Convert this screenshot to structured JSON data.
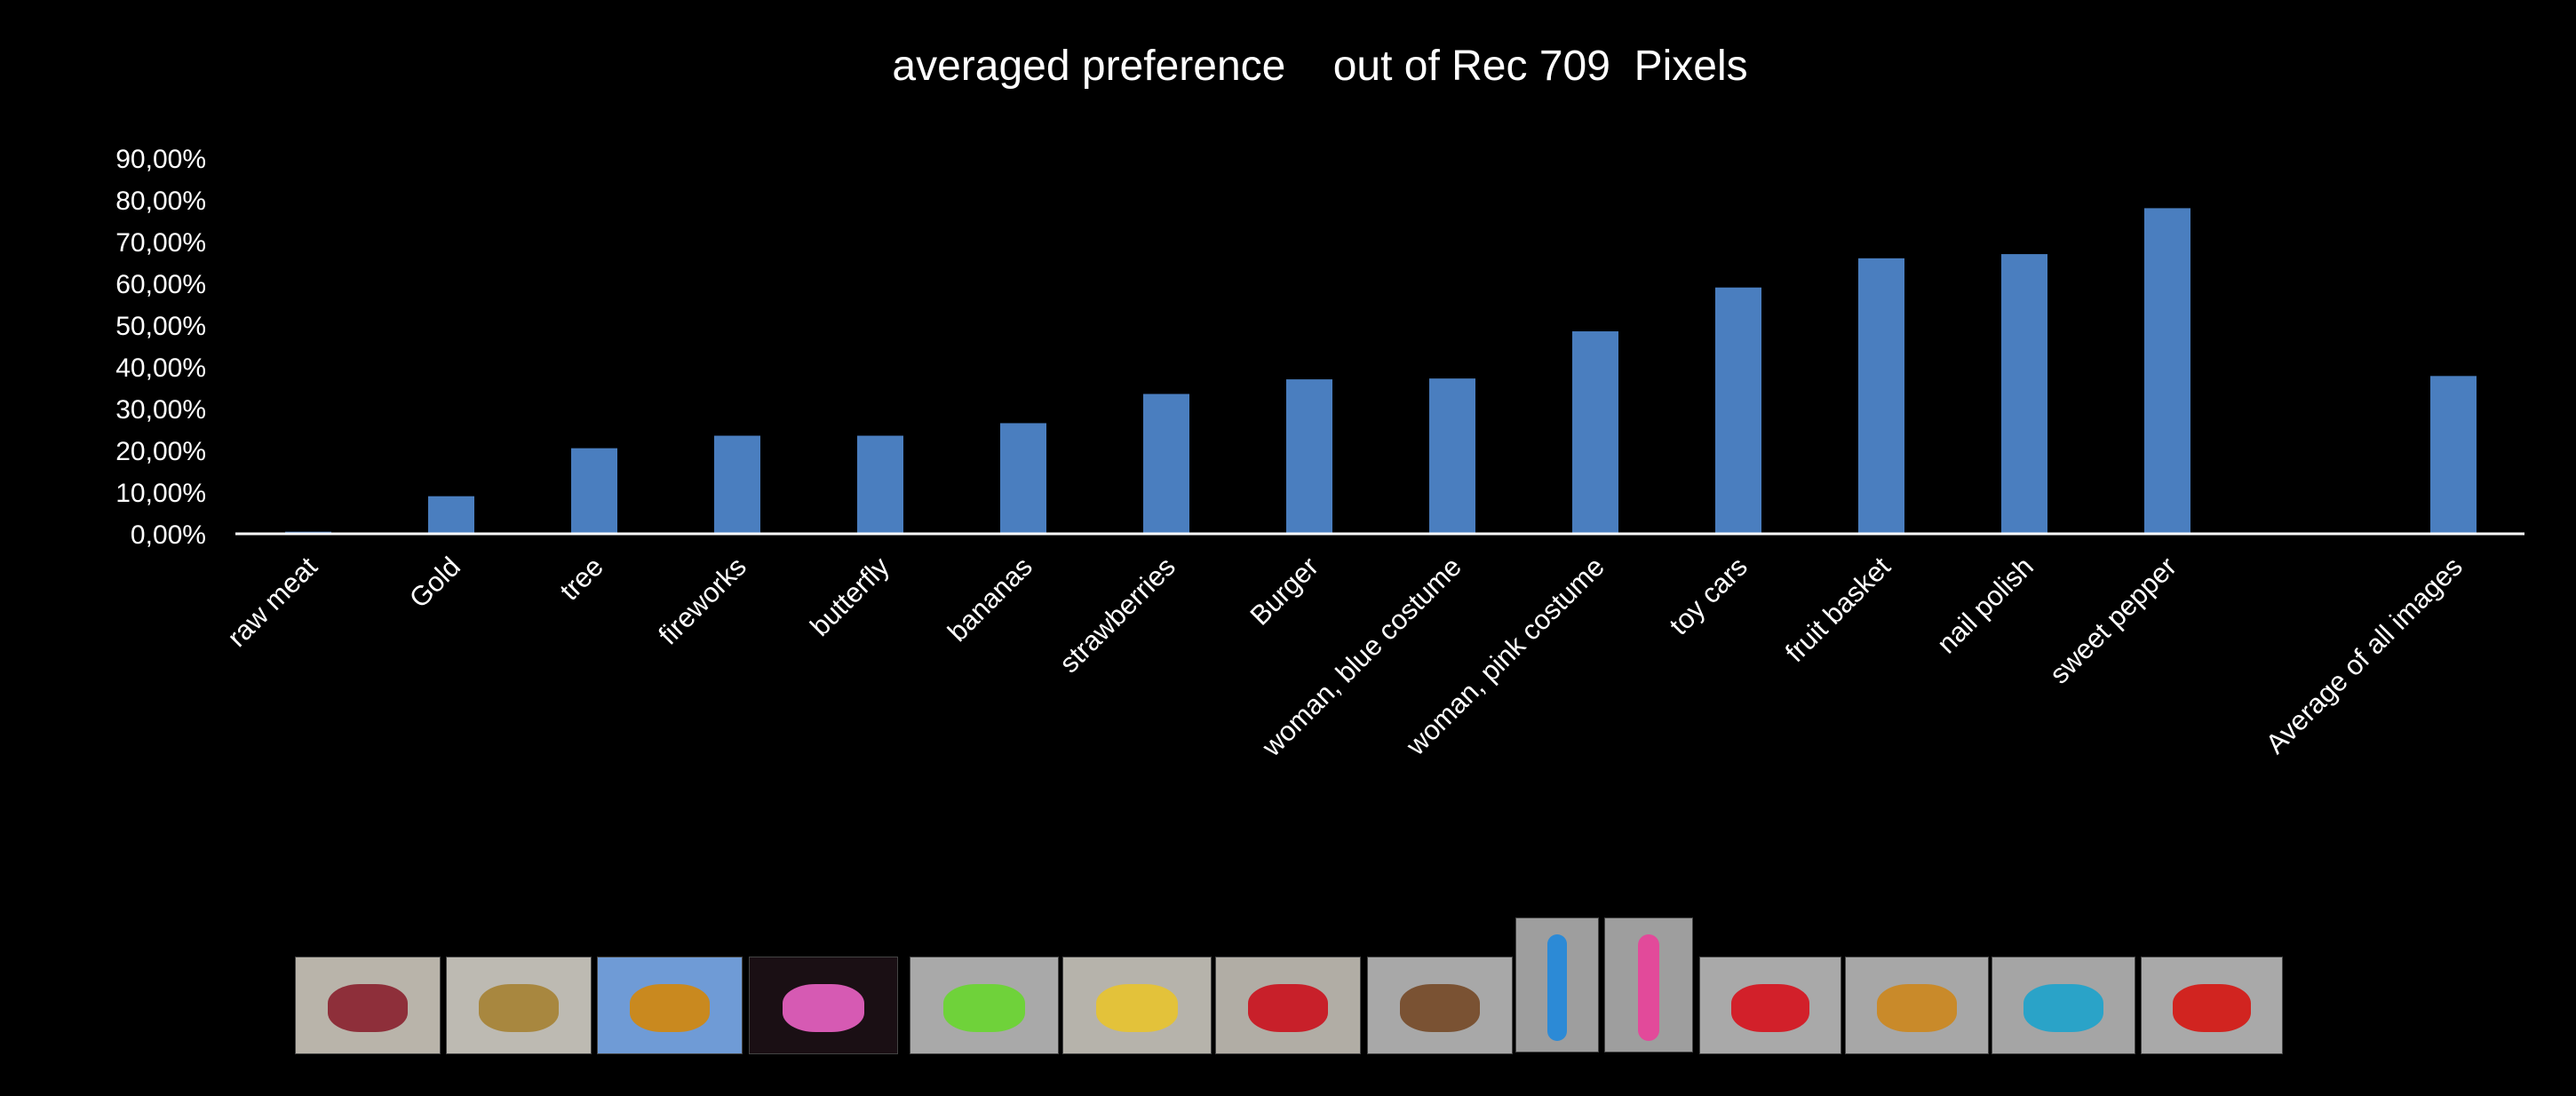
{
  "chart_data": {
    "type": "bar",
    "title": "averaged preference    out of Rec 709  Pixels",
    "xlabel": "",
    "ylabel": "",
    "ylim": [
      0,
      0.9
    ],
    "yticks": [
      "0,00%",
      "10,00%",
      "20,00%",
      "30,00%",
      "40,00%",
      "50,00%",
      "60,00%",
      "70,00%",
      "80,00%",
      "90,00%"
    ],
    "categories": [
      "raw meat",
      "Gold",
      "tree",
      "fireworks",
      "butterfly",
      "bananas",
      "strawberries",
      "Burger",
      "woman, blue costume",
      "woman, pink costume",
      "toy cars",
      "fruit basket",
      "nail polish",
      "sweet pepper",
      "",
      "Average of all images"
    ],
    "values": [
      0.005,
      0.09,
      0.205,
      0.235,
      0.235,
      0.265,
      0.335,
      0.37,
      0.372,
      0.485,
      0.59,
      0.66,
      0.67,
      0.78,
      null,
      0.378
    ],
    "bar_color": "#4a7ebf",
    "grid": false,
    "legend": "none"
  },
  "thumbnails": [
    {
      "name": "raw-meat-thumbnail",
      "bg": "#b9b4aa",
      "fg": "#8e2f3a"
    },
    {
      "name": "gold-thumbnail",
      "bg": "#bdbab2",
      "fg": "#a8873f"
    },
    {
      "name": "tree-thumbnail",
      "bg": "#6f9bd6",
      "fg": "#c9891f"
    },
    {
      "name": "fireworks-thumbnail",
      "bg": "#1a0f14",
      "fg": "#d65ab3"
    },
    {
      "name": "butterfly-thumbnail",
      "bg": "#a9a9a9",
      "fg": "#6fd23a"
    },
    {
      "name": "bananas-thumbnail",
      "bg": "#b6b3ab",
      "fg": "#e3c23a"
    },
    {
      "name": "strawberries-thumbnail",
      "bg": "#b1ada5",
      "fg": "#c8202a"
    },
    {
      "name": "burger-thumbnail",
      "bg": "#a8a8a8",
      "fg": "#7a5233"
    },
    {
      "name": "woman-blue-costume-thumbnail",
      "bg": "#9e9e9e",
      "fg": "#2c8ad6"
    },
    {
      "name": "woman-pink-costume-thumbnail",
      "bg": "#9e9e9e",
      "fg": "#e24a9a"
    },
    {
      "name": "toy-cars-thumbnail",
      "bg": "#a9a9a9",
      "fg": "#d2202a"
    },
    {
      "name": "fruit-basket-thumbnail",
      "bg": "#a7a7a7",
      "fg": "#c98a2a"
    },
    {
      "name": "nail-polish-thumbnail",
      "bg": "#a5a5a5",
      "fg": "#2aa3c8"
    },
    {
      "name": "sweet-pepper-thumbnail",
      "bg": "#a9a9a9",
      "fg": "#d12420"
    }
  ]
}
